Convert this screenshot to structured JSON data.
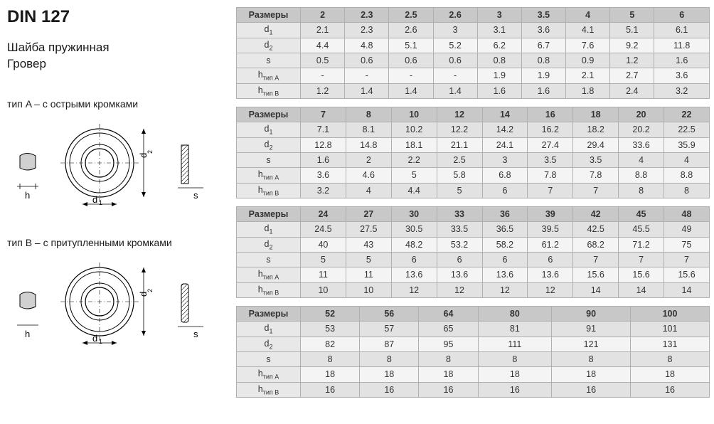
{
  "title": "DIN 127",
  "subtitle_line1": "Шайба пружинная",
  "subtitle_line2": "Гровер",
  "type_a_label": "тип A – с острыми кромками",
  "type_b_label": "тип B – с притупленными кромками",
  "diagram_labels": {
    "h": "h",
    "d1": "d",
    "d1_sub": "1",
    "d2": "d",
    "d2_sub": "2",
    "s": "s"
  },
  "param_labels": {
    "sizes": "Размеры",
    "d1_main": "d",
    "d1_sub": "1",
    "d2_main": "d",
    "d2_sub": "2",
    "s": "s",
    "hA_main": "h",
    "hA_sub": "тип A",
    "hB_main": "h",
    "hB_sub": "тип B"
  },
  "tables": [
    {
      "sizes": [
        "2",
        "2.3",
        "2.5",
        "2.6",
        "3",
        "3.5",
        "4",
        "5",
        "6"
      ],
      "d1": [
        "2.1",
        "2.3",
        "2.6",
        "3",
        "3.1",
        "3.6",
        "4.1",
        "5.1",
        "6.1"
      ],
      "d2": [
        "4.4",
        "4.8",
        "5.1",
        "5.2",
        "6.2",
        "6.7",
        "7.6",
        "9.2",
        "11.8"
      ],
      "s": [
        "0.5",
        "0.6",
        "0.6",
        "0.6",
        "0.8",
        "0.8",
        "0.9",
        "1.2",
        "1.6"
      ],
      "hA": [
        "-",
        "-",
        "-",
        "-",
        "1.9",
        "1.9",
        "2.1",
        "2.7",
        "3.6"
      ],
      "hB": [
        "1.2",
        "1.4",
        "1.4",
        "1.4",
        "1.6",
        "1.6",
        "1.8",
        "2.4",
        "3.2"
      ]
    },
    {
      "sizes": [
        "7",
        "8",
        "10",
        "12",
        "14",
        "16",
        "18",
        "20",
        "22"
      ],
      "d1": [
        "7.1",
        "8.1",
        "10.2",
        "12.2",
        "14.2",
        "16.2",
        "18.2",
        "20.2",
        "22.5"
      ],
      "d2": [
        "12.8",
        "14.8",
        "18.1",
        "21.1",
        "24.1",
        "27.4",
        "29.4",
        "33.6",
        "35.9"
      ],
      "s": [
        "1.6",
        "2",
        "2.2",
        "2.5",
        "3",
        "3.5",
        "3.5",
        "4",
        "4"
      ],
      "hA": [
        "3.6",
        "4.6",
        "5",
        "5.8",
        "6.8",
        "7.8",
        "7.8",
        "8.8",
        "8.8"
      ],
      "hB": [
        "3.2",
        "4",
        "4.4",
        "5",
        "6",
        "7",
        "7",
        "8",
        "8"
      ]
    },
    {
      "sizes": [
        "24",
        "27",
        "30",
        "33",
        "36",
        "39",
        "42",
        "45",
        "48"
      ],
      "d1": [
        "24.5",
        "27.5",
        "30.5",
        "33.5",
        "36.5",
        "39.5",
        "42.5",
        "45.5",
        "49"
      ],
      "d2": [
        "40",
        "43",
        "48.2",
        "53.2",
        "58.2",
        "61.2",
        "68.2",
        "71.2",
        "75"
      ],
      "s": [
        "5",
        "5",
        "6",
        "6",
        "6",
        "6",
        "7",
        "7",
        "7"
      ],
      "hA": [
        "11",
        "11",
        "13.6",
        "13.6",
        "13.6",
        "13.6",
        "15.6",
        "15.6",
        "15.6"
      ],
      "hB": [
        "10",
        "10",
        "12",
        "12",
        "12",
        "12",
        "14",
        "14",
        "14"
      ]
    },
    {
      "sizes": [
        "52",
        "56",
        "64",
        "80",
        "90",
        "100"
      ],
      "d1": [
        "53",
        "57",
        "65",
        "81",
        "91",
        "101"
      ],
      "d2": [
        "82",
        "87",
        "95",
        "111",
        "121",
        "131"
      ],
      "s": [
        "8",
        "8",
        "8",
        "8",
        "8",
        "8"
      ],
      "hA": [
        "18",
        "18",
        "18",
        "18",
        "18",
        "18"
      ],
      "hB": [
        "16",
        "16",
        "16",
        "16",
        "16",
        "16"
      ]
    }
  ],
  "styling": {
    "header_bg": "#c8c8c8",
    "param_bg": "#e8e8e8",
    "row_even_bg": "#e2e2e2",
    "row_odd_bg": "#f4f4f4",
    "border_color": "#b0b0b0",
    "title_fontsize": 24,
    "body_fontsize": 12.5,
    "subtitle_fontsize": 17
  }
}
